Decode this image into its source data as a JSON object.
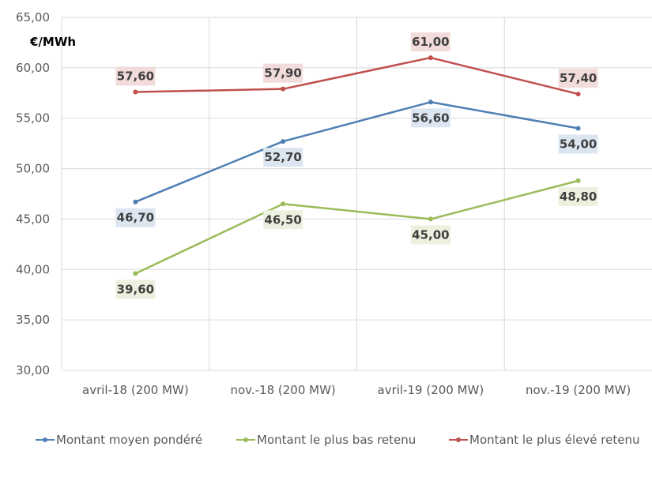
{
  "chart_data": {
    "type": "line",
    "title": "",
    "ylabel": "€/MWh",
    "xlabel": "",
    "ylim": [
      30,
      65
    ],
    "yticks": [
      "30,00",
      "35,00",
      "40,00",
      "45,00",
      "50,00",
      "55,00",
      "60,00",
      "65,00"
    ],
    "grid": true,
    "legend_position": "bottom",
    "categories": [
      "avril-18 (200 MW)",
      "nov.-18 (200 MW)",
      "avril-19 (200 MW)",
      "nov.-19 (200 MW)"
    ],
    "series": [
      {
        "name": "Montant moyen pondéré",
        "color": "#4f7fb5",
        "label_bg": "#dce6f1",
        "label_position": "below",
        "values": [
          46.7,
          52.7,
          56.6,
          54.0
        ],
        "labels": [
          "46,70",
          "52,70",
          "56,60",
          "54,00"
        ]
      },
      {
        "name": "Montant le plus bas retenu",
        "color": "#9bbb59",
        "label_bg": "#ebf1de",
        "label_position": "below",
        "values": [
          39.6,
          46.5,
          45.0,
          48.8
        ],
        "labels": [
          "39,60",
          "46,50",
          "45,00",
          "48,80"
        ]
      },
      {
        "name": "Montant le plus élevé retenu",
        "color": "#c0504d",
        "label_bg": "#f2dcdb",
        "label_position": "above",
        "values": [
          57.6,
          57.9,
          61.0,
          57.4
        ],
        "labels": [
          "57,60",
          "57,90",
          "61,00",
          "57,40"
        ]
      }
    ]
  },
  "legend": {
    "items": [
      {
        "label": "Montant moyen pondéré",
        "color": "#4f7fb5"
      },
      {
        "label": "Montant le plus bas retenu",
        "color": "#9bbb59"
      },
      {
        "label": "Montant le plus élevé retenu",
        "color": "#c0504d"
      }
    ]
  }
}
